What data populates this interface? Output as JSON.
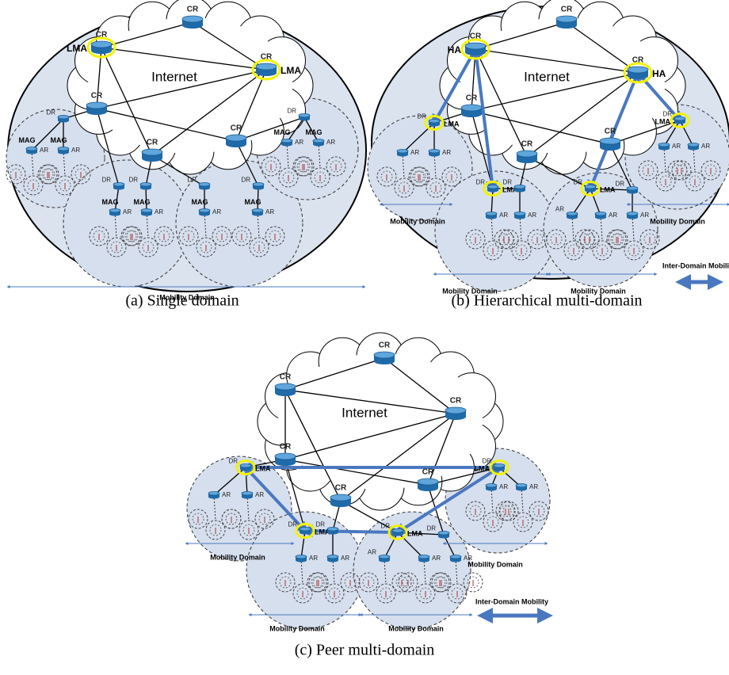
{
  "panels": [
    {
      "caption": "(a) Single domain",
      "cloud_label": "Internet",
      "nodes": [
        {
          "label": "CR"
        },
        {
          "label": "CR",
          "role": "LMA"
        },
        {
          "label": "CR",
          "role": "LMA"
        },
        {
          "label": "CR"
        },
        {
          "label": "CR"
        },
        {
          "label": "CR"
        },
        {
          "label": "DR"
        },
        {
          "label": "DR"
        },
        {
          "label": "DR"
        },
        {
          "label": "DR"
        },
        {
          "label": "DR"
        },
        {
          "label": "DR"
        },
        {
          "label": "AR",
          "role": "MAG"
        },
        {
          "label": "AR",
          "role": "MAG"
        },
        {
          "label": "AR",
          "role": "MAG"
        },
        {
          "label": "AR",
          "role": "MAG"
        },
        {
          "label": "AR",
          "role": "MAG"
        },
        {
          "label": "AR",
          "role": "MAG"
        },
        {
          "label": "AR",
          "role": "MAG"
        },
        {
          "label": "AR",
          "role": "MAG"
        }
      ],
      "domain_labels": [
        "Mobility Domain"
      ]
    },
    {
      "caption": "(b) Hierarchical multi-domain",
      "cloud_label": "Internet",
      "nodes": [
        {
          "label": "CR"
        },
        {
          "label": "CR",
          "role": "HA"
        },
        {
          "label": "CR",
          "role": "HA"
        },
        {
          "label": "CR"
        },
        {
          "label": "CR"
        },
        {
          "label": "CR"
        },
        {
          "label": "DR",
          "role": "LMA"
        },
        {
          "label": "DR",
          "role": "LMA"
        },
        {
          "label": "DR"
        },
        {
          "label": "DR",
          "role": "LMA"
        },
        {
          "label": "DR"
        },
        {
          "label": "DR",
          "role": "LMA"
        },
        {
          "label": "AR"
        },
        {
          "label": "AR"
        },
        {
          "label": "AR"
        },
        {
          "label": "AR"
        },
        {
          "label": "AR"
        },
        {
          "label": "AR"
        },
        {
          "label": "AR"
        },
        {
          "label": "AR"
        },
        {
          "label": "AR"
        }
      ],
      "domain_labels": [
        "Mobility Domain",
        "Mobility Domain",
        "Mobility Domain",
        "Mobility Domain"
      ],
      "inter_domain_label": "Inter-Domain Mobility"
    },
    {
      "caption": "(c) Peer multi-domain",
      "cloud_label": "Internet",
      "nodes": [
        {
          "label": "CR"
        },
        {
          "label": "CR"
        },
        {
          "label": "CR"
        },
        {
          "label": "CR"
        },
        {
          "label": "CR"
        },
        {
          "label": "CR"
        },
        {
          "label": "DR",
          "role": "LMA"
        },
        {
          "label": "DR",
          "role": "LMA"
        },
        {
          "label": "DR"
        },
        {
          "label": "DR",
          "role": "LMA"
        },
        {
          "label": "DR"
        },
        {
          "label": "DR",
          "role": "LMA"
        },
        {
          "label": "AR"
        },
        {
          "label": "AR"
        },
        {
          "label": "AR"
        },
        {
          "label": "AR"
        },
        {
          "label": "AR"
        },
        {
          "label": "AR"
        },
        {
          "label": "AR"
        },
        {
          "label": "AR"
        },
        {
          "label": "AR"
        }
      ],
      "domain_labels": [
        "Mobility Domain",
        "Mobility Domain",
        "Mobility Domain",
        "Mobility Domain"
      ],
      "inter_domain_label": "Inter-Domain Mobility"
    }
  ]
}
